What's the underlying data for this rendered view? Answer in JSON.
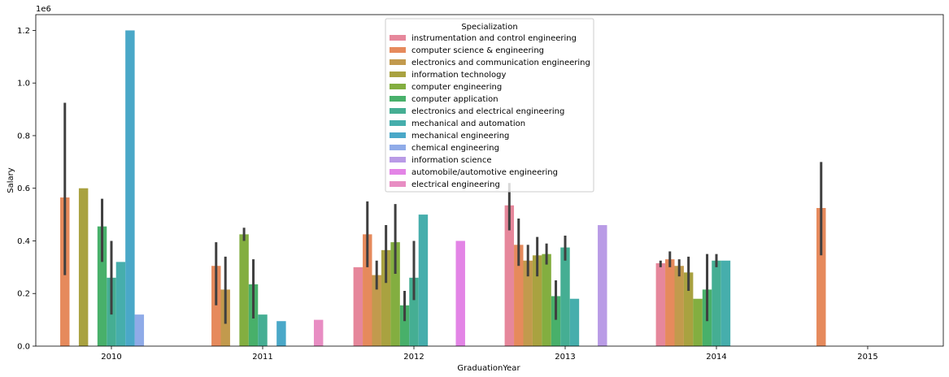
{
  "chart_data": {
    "type": "bar",
    "xlabel": "GraduationYear",
    "ylabel": "Salary",
    "offset_text": "1e6",
    "ylim": [
      0,
      1.26
    ],
    "yticks": [
      "0.0",
      "0.2",
      "0.4",
      "0.6",
      "0.8",
      "1.0",
      "1.2"
    ],
    "categories": [
      "2010",
      "2011",
      "2012",
      "2013",
      "2014",
      "2015"
    ],
    "legend": {
      "title": "Specialization",
      "placement": "upper center"
    },
    "series": [
      {
        "name": "instrumentation and control engineering",
        "color": "#e6879b",
        "values": [
          null,
          null,
          0.3,
          0.535,
          0.315,
          null
        ],
        "err": [
          null,
          null,
          null,
          [
            0.44,
            0.62
          ],
          [
            0.3,
            0.325
          ],
          null
        ]
      },
      {
        "name": "computer science & engineering",
        "color": "#e68a5c",
        "values": [
          0.565,
          0.305,
          0.425,
          0.385,
          0.33,
          0.525
        ],
        "err": [
          [
            0.27,
            0.925
          ],
          [
            0.155,
            0.395
          ],
          [
            0.3,
            0.55
          ],
          [
            0.305,
            0.485
          ],
          [
            0.3,
            0.36
          ],
          [
            0.345,
            0.7
          ]
        ]
      },
      {
        "name": "electronics and communication engineering",
        "color": "#c29a4d",
        "values": [
          null,
          0.215,
          0.27,
          0.325,
          0.305,
          null
        ],
        "err": [
          null,
          [
            0.085,
            0.34
          ],
          [
            0.215,
            0.325
          ],
          [
            0.265,
            0.385
          ],
          [
            0.265,
            0.33
          ],
          null
        ]
      },
      {
        "name": "information technology",
        "color": "#a9a240",
        "values": [
          0.6,
          null,
          0.365,
          0.345,
          0.28,
          null
        ],
        "err": [
          null,
          null,
          [
            0.24,
            0.46
          ],
          [
            0.265,
            0.415
          ],
          [
            0.21,
            0.34
          ],
          null
        ]
      },
      {
        "name": "computer engineering",
        "color": "#83ae40",
        "values": [
          null,
          0.425,
          0.395,
          0.35,
          0.18,
          null
        ],
        "err": [
          null,
          [
            0.4,
            0.45
          ],
          [
            0.275,
            0.54
          ],
          [
            0.31,
            0.39
          ],
          null,
          null
        ]
      },
      {
        "name": "computer application",
        "color": "#48b06a",
        "values": [
          0.455,
          0.235,
          0.155,
          0.19,
          0.215,
          null
        ],
        "err": [
          [
            0.32,
            0.56
          ],
          [
            0.105,
            0.33
          ],
          [
            0.095,
            0.21
          ],
          [
            0.1,
            0.25
          ],
          [
            0.095,
            0.35
          ],
          null
        ]
      },
      {
        "name": "electronics and electrical engineering",
        "color": "#45ae93",
        "values": [
          0.26,
          0.12,
          0.26,
          0.375,
          0.325,
          null
        ],
        "err": [
          [
            0.12,
            0.4
          ],
          null,
          [
            0.175,
            0.4
          ],
          [
            0.325,
            0.42
          ],
          [
            0.3,
            0.35
          ],
          null
        ]
      },
      {
        "name": "mechanical and automation",
        "color": "#46aeac",
        "values": [
          0.32,
          null,
          0.5,
          0.18,
          0.325,
          null
        ],
        "err": [
          null,
          null,
          null,
          null,
          null,
          null
        ]
      },
      {
        "name": "mechanical engineering",
        "color": "#4aa8c8",
        "values": [
          null,
          0.095,
          null,
          null,
          null,
          null
        ],
        "err": [
          null,
          null,
          null,
          null,
          null,
          null
        ]
      },
      {
        "name": "chemical engineering",
        "color": "#8fabe8",
        "values": [
          0.12,
          null,
          null,
          null,
          null,
          null
        ],
        "err": [
          null,
          null,
          null,
          null,
          null,
          null
        ]
      },
      {
        "name": "information science",
        "color": "#b99be6",
        "values": [
          null,
          null,
          null,
          0.46,
          null,
          null
        ],
        "err": [
          null,
          null,
          null,
          null,
          null,
          null
        ]
      },
      {
        "name": "automobile/automotive engineering",
        "color": "#e384e6",
        "values": [
          null,
          null,
          0.4,
          null,
          null,
          null
        ],
        "err": [
          null,
          null,
          null,
          null,
          null,
          null
        ]
      },
      {
        "name": "electrical engineering",
        "color": "#e88dc3",
        "values": [
          null,
          0.1,
          null,
          null,
          null,
          null
        ],
        "err": [
          null,
          null,
          null,
          null,
          null,
          null
        ]
      }
    ],
    "extra_bars": [
      {
        "series": "mechanical engineering",
        "category": "2010",
        "value": 1.2,
        "slot": 8
      }
    ]
  }
}
